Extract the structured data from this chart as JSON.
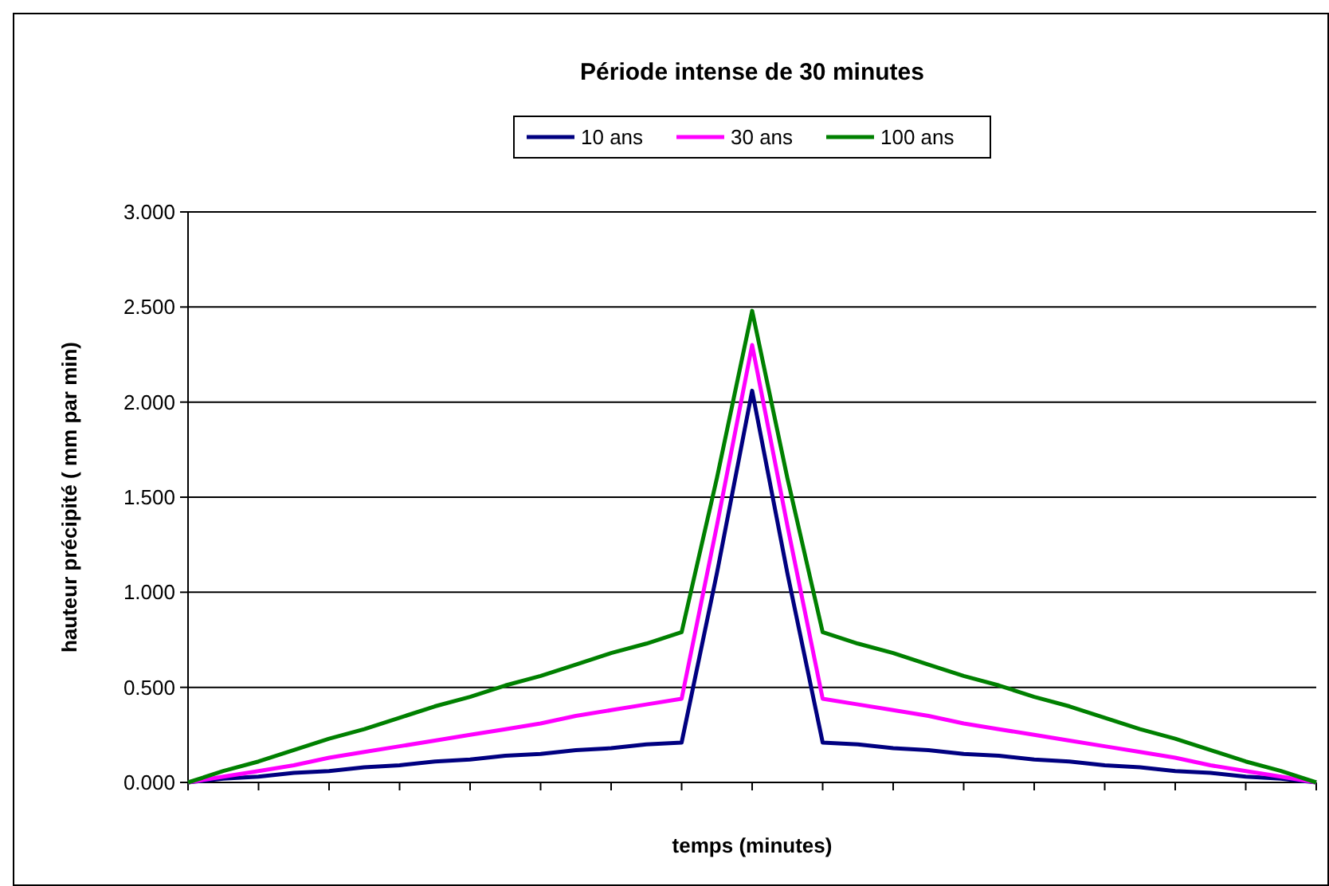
{
  "chart_data": {
    "type": "line",
    "title": "Période intense de 30 minutes",
    "xlabel": "temps (minutes)",
    "ylabel": "hauteur précipité ( mm par min)",
    "categories": [
      null,
      null,
      null,
      null,
      null,
      null,
      null,
      null,
      null,
      null,
      null,
      null,
      null,
      null,
      null,
      null,
      null,
      null,
      null,
      null,
      null,
      null,
      null,
      null,
      null,
      null,
      null,
      null,
      null,
      null,
      null,
      null,
      null
    ],
    "series": [
      {
        "name": "10 ans",
        "color": "#000080",
        "values": [
          0,
          0.02,
          0.03,
          0.05,
          0.06,
          0.08,
          0.09,
          0.11,
          0.12,
          0.14,
          0.15,
          0.17,
          0.18,
          0.2,
          0.21,
          1.1,
          2.06,
          1.1,
          0.21,
          0.2,
          0.18,
          0.17,
          0.15,
          0.14,
          0.12,
          0.11,
          0.09,
          0.08,
          0.06,
          0.05,
          0.03,
          0.02,
          0
        ]
      },
      {
        "name": "30 ans",
        "color": "#ff00ff",
        "values": [
          0,
          0.03,
          0.06,
          0.09,
          0.13,
          0.16,
          0.19,
          0.22,
          0.25,
          0.28,
          0.31,
          0.35,
          0.38,
          0.41,
          0.44,
          1.35,
          2.3,
          1.35,
          0.44,
          0.41,
          0.38,
          0.35,
          0.31,
          0.28,
          0.25,
          0.22,
          0.19,
          0.16,
          0.13,
          0.09,
          0.06,
          0.03,
          0
        ]
      },
      {
        "name": "100 ans",
        "color": "#008000",
        "values": [
          0,
          0.06,
          0.11,
          0.17,
          0.23,
          0.28,
          0.34,
          0.4,
          0.45,
          0.51,
          0.56,
          0.62,
          0.68,
          0.73,
          0.79,
          1.6,
          2.48,
          1.6,
          0.79,
          0.73,
          0.68,
          0.62,
          0.56,
          0.51,
          0.45,
          0.4,
          0.34,
          0.28,
          0.23,
          0.17,
          0.11,
          0.06,
          0
        ]
      }
    ],
    "ylim": [
      0,
      3
    ],
    "yticks": [
      {
        "value": 0,
        "label": "0.000"
      },
      {
        "value": 0.5,
        "label": "0.500"
      },
      {
        "value": 1,
        "label": "1.000"
      },
      {
        "value": 1.5,
        "label": "1.500"
      },
      {
        "value": 2,
        "label": "2.000"
      },
      {
        "value": 2.5,
        "label": "2.500"
      },
      {
        "value": 3,
        "label": "3.000"
      }
    ],
    "grid": "y",
    "legend": "top",
    "marker": "none",
    "line_style": "solid"
  }
}
